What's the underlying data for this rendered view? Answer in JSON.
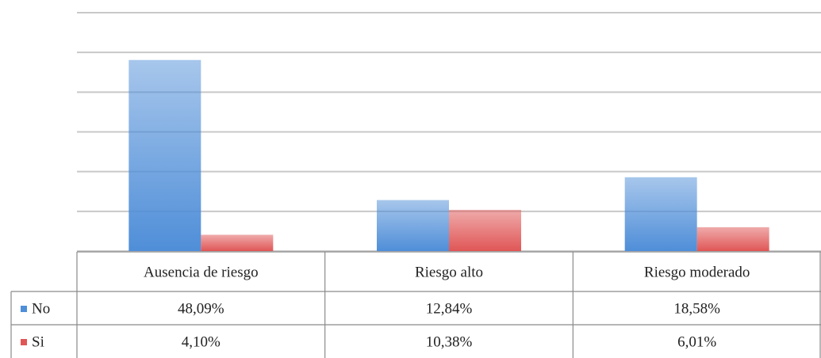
{
  "chart_data": {
    "type": "bar",
    "categories": [
      "Ausencia de riesgo",
      "Riesgo alto",
      "Riesgo moderado"
    ],
    "series": [
      {
        "name": "No",
        "color": "#4f8ed8",
        "values": [
          48.09,
          12.84,
          18.58
        ],
        "value_labels": [
          "48,09%",
          "12,84%",
          "18,58%"
        ]
      },
      {
        "name": "Si",
        "color": "#e05656",
        "values": [
          4.1,
          10.38,
          6.01
        ],
        "value_labels": [
          "4,10%",
          "10,38%",
          "6,01%"
        ]
      }
    ],
    "ylim": [
      0,
      60
    ],
    "yticks": [
      0,
      10,
      20,
      30,
      40,
      50,
      60
    ],
    "grid": true
  }
}
